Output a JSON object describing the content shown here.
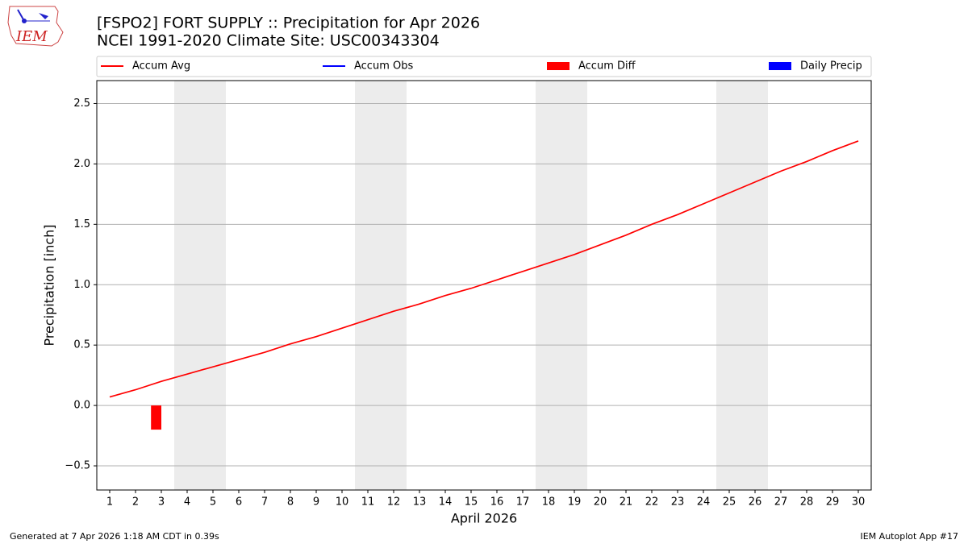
{
  "logo_text": "IEM",
  "footer": {
    "left": "Generated at 7 Apr 2026 1:18 AM CDT in 0.39s",
    "right": "IEM Autoplot App #17"
  },
  "chart_data": {
    "type": "line",
    "title": "[FSPO2] FORT SUPPLY :: Precipitation for Apr 2026",
    "subtitle": "NCEI 1991-2020 Climate Site: USC00343304",
    "x_label": "April 2026",
    "y_label": "Precipitation [inch]",
    "x": [
      1,
      2,
      3,
      4,
      5,
      6,
      7,
      8,
      9,
      10,
      11,
      12,
      13,
      14,
      15,
      16,
      17,
      18,
      19,
      20,
      21,
      22,
      23,
      24,
      25,
      26,
      27,
      28,
      29,
      30
    ],
    "series": [
      {
        "name": "Accum Avg",
        "kind": "line",
        "color": "#ff0000",
        "values": [
          0.07,
          0.13,
          0.2,
          0.26,
          0.32,
          0.38,
          0.44,
          0.51,
          0.57,
          0.64,
          0.71,
          0.78,
          0.84,
          0.91,
          0.97,
          1.04,
          1.11,
          1.18,
          1.25,
          1.33,
          1.41,
          1.5,
          1.58,
          1.67,
          1.76,
          1.85,
          1.94,
          2.02,
          2.11,
          2.19
        ]
      },
      {
        "name": "Accum Obs",
        "kind": "line",
        "color": "#0000ff",
        "values": [
          null,
          null,
          null,
          null,
          null,
          null,
          null,
          null,
          null,
          null,
          null,
          null,
          null,
          null,
          null,
          null,
          null,
          null,
          null,
          null,
          null,
          null,
          null,
          null,
          null,
          null,
          null,
          null,
          null,
          null
        ]
      },
      {
        "name": "Accum Diff",
        "kind": "bar",
        "color": "#ff0000",
        "values": [
          null,
          null,
          -0.2,
          null,
          null,
          null,
          null,
          null,
          null,
          null,
          null,
          null,
          null,
          null,
          null,
          null,
          null,
          null,
          null,
          null,
          null,
          null,
          null,
          null,
          null,
          null,
          null,
          null,
          null,
          null
        ]
      },
      {
        "name": "Daily Precip",
        "kind": "bar",
        "color": "#0000ff",
        "values": [
          null,
          null,
          null,
          null,
          null,
          null,
          null,
          null,
          null,
          null,
          null,
          null,
          null,
          null,
          null,
          null,
          null,
          null,
          null,
          null,
          null,
          null,
          null,
          null,
          null,
          null,
          null,
          null,
          null,
          null
        ]
      }
    ],
    "shaded": [
      [
        4,
        5
      ],
      [
        11,
        12
      ],
      [
        18,
        19
      ],
      [
        25,
        26
      ]
    ],
    "xlim": [
      0.5,
      30.5
    ],
    "xticks": [
      1,
      2,
      3,
      4,
      5,
      6,
      7,
      8,
      9,
      10,
      11,
      12,
      13,
      14,
      15,
      16,
      17,
      18,
      19,
      20,
      21,
      22,
      23,
      24,
      25,
      26,
      27,
      28,
      29,
      30
    ],
    "ylim": [
      -0.7,
      2.69
    ],
    "yticks": [
      {
        "value": -0.5,
        "label": "−0.5"
      },
      {
        "value": 0,
        "label": "0.0"
      },
      {
        "value": 0.5,
        "label": "0.5"
      },
      {
        "value": 1,
        "label": "1.0"
      },
      {
        "value": 1.5,
        "label": "1.5"
      },
      {
        "value": 2,
        "label": "2.0"
      },
      {
        "value": 2.5,
        "label": "2.5"
      }
    ],
    "grid": true,
    "legend": "top"
  }
}
